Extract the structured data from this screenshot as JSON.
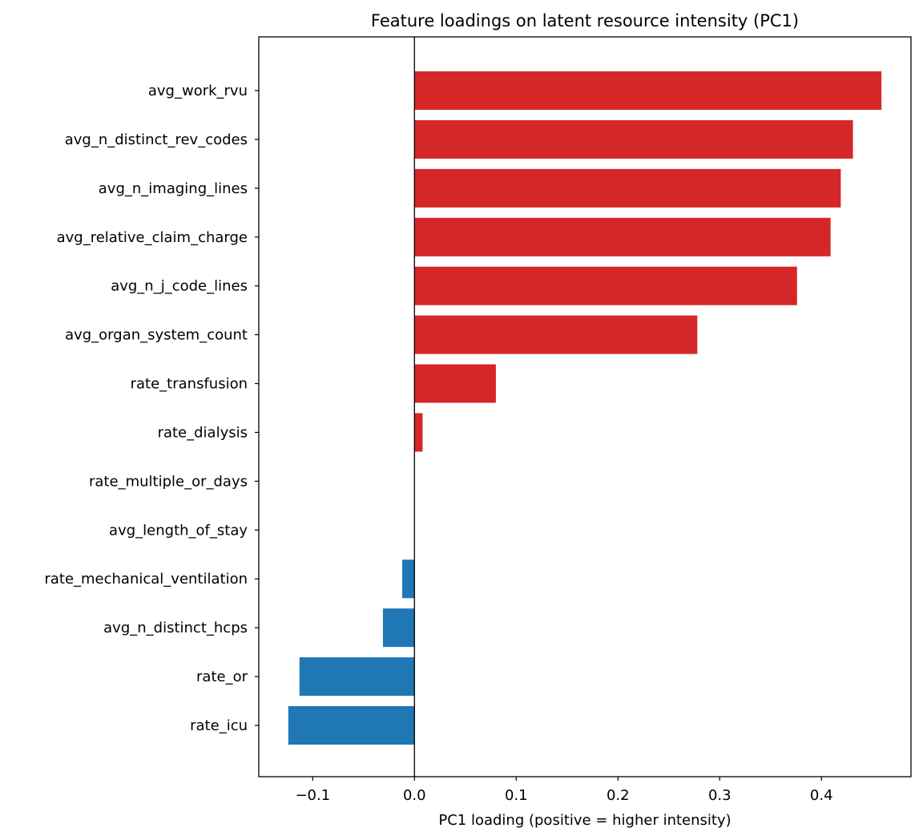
{
  "chart_data": {
    "type": "bar",
    "orientation": "horizontal",
    "title": "Feature loadings on latent resource intensity (PC1)",
    "xlabel": "PC1 loading (positive = higher intensity)",
    "ylabel": "",
    "xlim": [
      -0.153,
      0.488
    ],
    "xticks": [
      -0.1,
      0.0,
      0.1,
      0.2,
      0.3,
      0.4
    ],
    "xtick_labels": [
      "−0.1",
      "0.0",
      "0.1",
      "0.2",
      "0.3",
      "0.4"
    ],
    "grid": false,
    "zero_line": true,
    "categories": [
      "avg_work_rvu",
      "avg_n_distinct_rev_codes",
      "avg_n_imaging_lines",
      "avg_relative_claim_charge",
      "avg_n_j_code_lines",
      "avg_organ_system_count",
      "rate_transfusion",
      "rate_dialysis",
      "rate_multiple_or_days",
      "avg_length_of_stay",
      "rate_mechanical_ventilation",
      "avg_n_distinct_hcps",
      "rate_or",
      "rate_icu"
    ],
    "values": [
      0.459,
      0.431,
      0.419,
      0.409,
      0.376,
      0.278,
      0.08,
      0.008,
      0.0,
      0.0,
      -0.012,
      -0.031,
      -0.113,
      -0.124
    ],
    "colors": {
      "positive": "#d62728",
      "negative": "#1f77b4"
    }
  }
}
